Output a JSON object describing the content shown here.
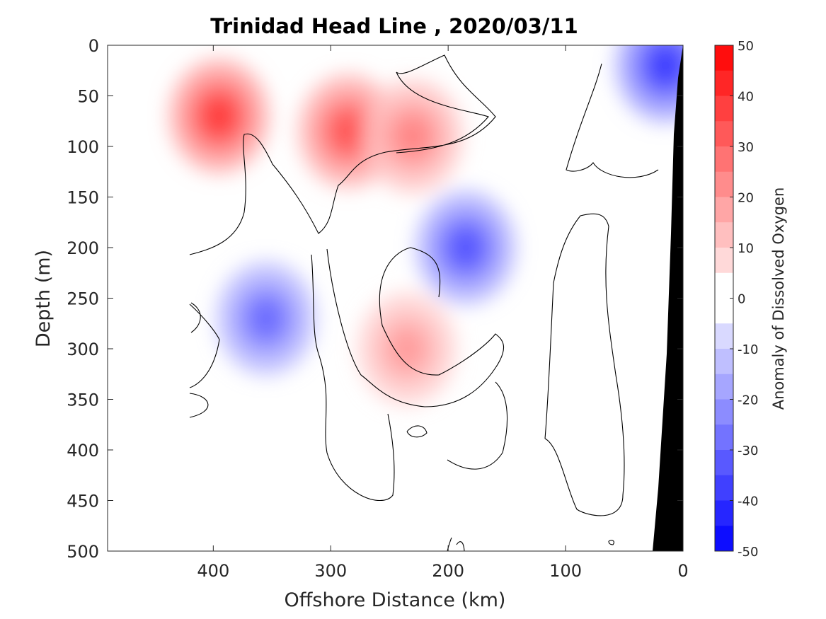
{
  "chart_data": {
    "type": "heatmap",
    "title": "Trinidad Head Line , 2020/03/11",
    "xlabel": "Offshore Distance (km)",
    "ylabel": "Depth (m)",
    "colorbar_label": "Anomaly of Dissolved Oxygen",
    "xlim": [
      490,
      0
    ],
    "ylim": [
      0,
      500
    ],
    "x_direction": "reversed",
    "y_direction": "reversed",
    "x_ticks": [
      400,
      300,
      200,
      100,
      0
    ],
    "y_ticks": [
      0,
      50,
      100,
      150,
      200,
      250,
      300,
      350,
      400,
      450,
      500
    ],
    "colorbar_ticks": [
      50,
      40,
      30,
      20,
      10,
      0,
      -10,
      -20,
      -30,
      -40,
      -50
    ],
    "clim": [
      -50,
      50
    ],
    "contour_interval": 5,
    "colormap": "blue-white-red",
    "colors": {
      "low": "#0000ff",
      "zero": "#ffffff",
      "high": "#ff0000",
      "bathymetry": "#000000"
    },
    "data_x_range_km": [
      420,
      0
    ],
    "data_depth_range_m": [
      0,
      500
    ],
    "features": [
      {
        "kind": "positive anomaly",
        "distance_km": 395,
        "depth_m": 70,
        "peak": 40
      },
      {
        "kind": "positive anomaly",
        "distance_km": 285,
        "depth_m": 85,
        "peak": 35
      },
      {
        "kind": "positive anomaly",
        "distance_km": 230,
        "depth_m": 90,
        "peak": 25
      },
      {
        "kind": "positive anomaly",
        "distance_km": 235,
        "depth_m": 300,
        "peak": 20
      },
      {
        "kind": "negative anomaly",
        "distance_km": 185,
        "depth_m": 200,
        "peak": -35
      },
      {
        "kind": "negative anomaly",
        "distance_km": 355,
        "depth_m": 270,
        "peak": -30
      },
      {
        "kind": "negative anomaly",
        "distance_km": 15,
        "depth_m": 20,
        "peak": -40
      }
    ]
  }
}
